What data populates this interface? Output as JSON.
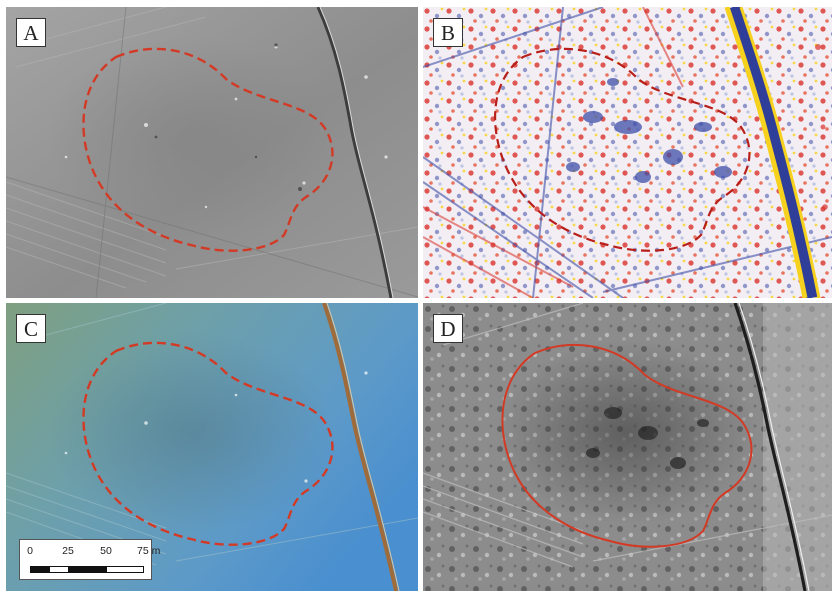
{
  "figure": {
    "panels": [
      {
        "label": "A",
        "render": "grayscale hillshade",
        "outline": "dashed red boundary"
      },
      {
        "label": "B",
        "render": "red-white-blue color relief with yellow highlights",
        "outline": "dashed red boundary"
      },
      {
        "label": "C",
        "render": "blue-green tinted hillshade",
        "outline": "dashed red boundary"
      },
      {
        "label": "D",
        "render": "grayscale local relief",
        "outline": "solid red boundary"
      }
    ],
    "scalebar": {
      "ticks": [
        "0",
        "25",
        "50",
        "75 m"
      ],
      "segment_colors": [
        "#111111",
        "#ffffff",
        "#111111",
        "#ffffff"
      ]
    }
  },
  "colors": {
    "outline": "#d33a25",
    "panel_a_base": "#8f8f8f",
    "panel_b_base": "#f0eef5",
    "panel_b_red": "#d8312b",
    "panel_b_blue": "#3f4fa8",
    "panel_b_yellow": "#f6d21e",
    "panel_c_base": "#6ea0b0",
    "panel_d_base": "#8a8a8a"
  }
}
